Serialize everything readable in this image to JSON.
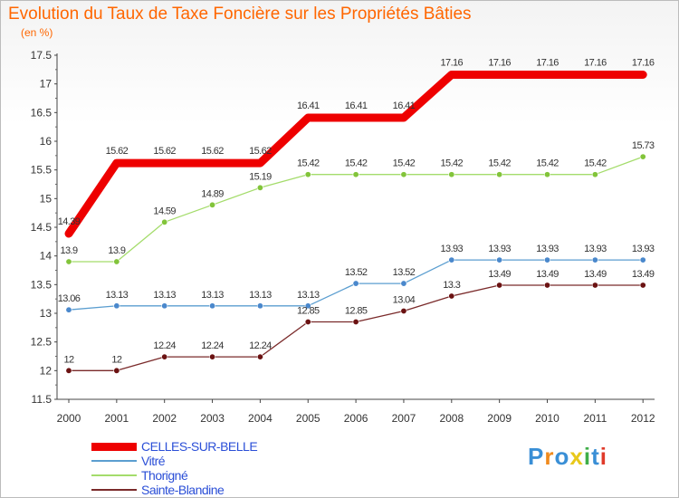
{
  "title": "Evolution du Taux de Taxe Foncière sur les Propriétés Bâties",
  "unit": "(en %)",
  "logo": {
    "text": "Proxiti",
    "colors": [
      "#3a8fd6",
      "#f08a1c",
      "#3a8fd6",
      "#e8c81a",
      "#3fae49",
      "#3a8fd6",
      "#e03a2a"
    ]
  },
  "chart_data": {
    "type": "line",
    "x": [
      "2000",
      "2001",
      "2002",
      "2003",
      "2004",
      "2005",
      "2006",
      "2007",
      "2008",
      "2009",
      "2010",
      "2011",
      "2012"
    ],
    "ylim": [
      11.5,
      17.5
    ],
    "yticks": [
      "11.5",
      "12",
      "12.5",
      "13",
      "13.5",
      "14",
      "14.5",
      "15",
      "15.5",
      "16",
      "16.5",
      "17",
      "17.5"
    ],
    "legend_position": "bottom-left",
    "series": [
      {
        "name": "CELLES-SUR-BELLE",
        "color": "#ee0000",
        "width": 9,
        "markers": false,
        "labels_above": true,
        "values": [
          14.39,
          15.62,
          15.62,
          15.62,
          15.62,
          16.41,
          16.41,
          16.41,
          17.16,
          17.16,
          17.16,
          17.16,
          17.16
        ],
        "labels": [
          "14.39",
          "15.62",
          "15.62",
          "15.62",
          "15.62",
          "16.41",
          "16.41",
          "16.41",
          "17.16",
          "17.16",
          "17.16",
          "17.16",
          "17.16"
        ]
      },
      {
        "name": "Vitré",
        "color": "#5b9ed0",
        "marker_color": "#4a88cc",
        "width": 1.3,
        "markers": true,
        "labels_above": true,
        "values": [
          13.06,
          13.13,
          13.13,
          13.13,
          13.13,
          13.13,
          13.52,
          13.52,
          13.93,
          13.93,
          13.93,
          13.93,
          13.93
        ],
        "labels": [
          "13.06",
          "13.13",
          "13.13",
          "13.13",
          "13.13",
          "13.13",
          "13.52",
          "13.52",
          "13.93",
          "13.93",
          "13.93",
          "13.93",
          "13.93"
        ]
      },
      {
        "name": "Thorigné",
        "color": "#a4dc6b",
        "marker_color": "#82c43a",
        "width": 1.3,
        "markers": true,
        "labels_above": true,
        "values": [
          13.9,
          13.9,
          14.59,
          14.89,
          15.19,
          15.42,
          15.42,
          15.42,
          15.42,
          15.42,
          15.42,
          15.42,
          15.73
        ],
        "labels": [
          "13.9",
          "13.9",
          "14.59",
          "14.89",
          "15.19",
          "15.42",
          "15.42",
          "15.42",
          "15.42",
          "15.42",
          "15.42",
          "15.42",
          "15.73"
        ]
      },
      {
        "name": "Sainte-Blandine",
        "color": "#7a2a2a",
        "marker_color": "#6b1212",
        "width": 1.3,
        "markers": true,
        "labels_above": true,
        "values": [
          12,
          12,
          12.24,
          12.24,
          12.24,
          12.85,
          12.85,
          13.04,
          13.3,
          13.49,
          13.49,
          13.49,
          13.49
        ],
        "labels": [
          "12",
          "12",
          "12.24",
          "12.24",
          "12.24",
          "12.85",
          "12.85",
          "13.04",
          "13.3",
          "13.49",
          "13.49",
          "13.49",
          "13.49"
        ]
      }
    ]
  }
}
